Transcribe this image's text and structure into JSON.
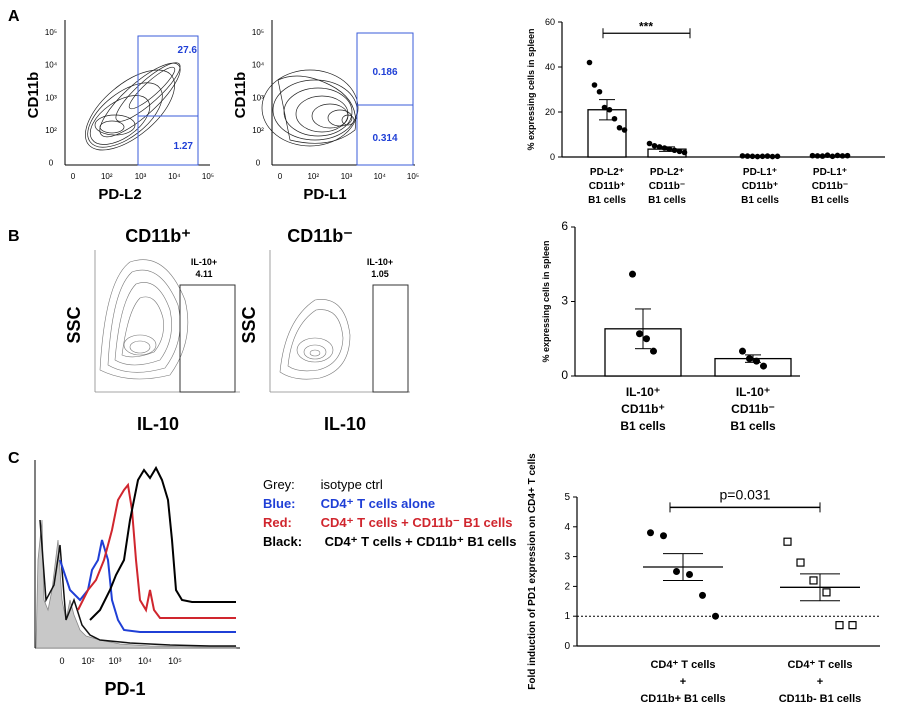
{
  "panels": {
    "A": {
      "letter": "A",
      "flow_left": {
        "ylabel": "CD11b",
        "xlabel": "PD-L2",
        "gate_upper": "27.6",
        "gate_lower": "1.27"
      },
      "flow_right": {
        "ylabel": "CD11b",
        "xlabel": "PD-L1",
        "gate_upper": "0.186",
        "gate_lower": "0.314"
      },
      "flow_yticks": [
        "10⁵",
        "10⁴",
        "10³",
        "10²",
        "0"
      ],
      "flow_xticks": [
        "0",
        "10²",
        "10³",
        "10⁴",
        "10⁵"
      ]
    },
    "B": {
      "letter": "B",
      "flow_left": {
        "title": "CD11b⁺",
        "ylabel": "SSC",
        "xlabel": "IL-10",
        "gate_name": "IL-10+",
        "gate_value": "4.11"
      },
      "flow_right": {
        "title": "CD11b⁻",
        "ylabel": "SSC",
        "xlabel": "IL-10",
        "gate_name": "IL-10+",
        "gate_value": "1.05"
      }
    },
    "C": {
      "letter": "C",
      "histogram": {
        "xlabel": "PD-1",
        "xticks": [
          "0",
          "10²",
          "10³",
          "10⁴",
          "10⁵"
        ]
      },
      "legend": [
        {
          "key": "Grey:",
          "text": "isotype ctrl",
          "color": "#222222"
        },
        {
          "key": "Blue:",
          "text": "CD4⁺ T cells alone",
          "color": "#1f3fd6"
        },
        {
          "key": "Red:",
          "text": "CD4⁺ T cells + CD11b⁻ B1 cells",
          "color": "#d0262e"
        },
        {
          "key": "Black:",
          "text": "CD4⁺ T cells + CD11b⁺ B1 cells",
          "color": "#000000"
        }
      ]
    }
  },
  "chart_data": [
    {
      "id": "A-bar",
      "type": "bar",
      "ylabel": "% expressing cells in spleen",
      "ylim": [
        0,
        60
      ],
      "yticks": [
        "0",
        "20",
        "40",
        "60"
      ],
      "significance": "***",
      "categories": [
        [
          "PD-L2⁺",
          "CD11b⁺",
          "B1 cells"
        ],
        [
          "PD-L2⁺",
          "CD11b⁻",
          "B1 cells"
        ],
        [
          "PD-L1⁺",
          "CD11b⁺",
          "B1 cells"
        ],
        [
          "PD-L1⁺",
          "CD11b⁻",
          "B1 cells"
        ]
      ],
      "values": [
        21,
        3.5,
        0.3,
        0.5
      ],
      "errors": [
        4.5,
        1.0,
        0.2,
        0.3
      ],
      "points": [
        [
          42,
          32,
          29,
          22,
          21,
          17,
          13,
          12
        ],
        [
          6,
          5,
          4.5,
          4,
          3.5,
          3,
          2.5,
          2
        ],
        [
          0.5,
          0.4,
          0.3,
          0.2,
          0.3,
          0.4,
          0.2,
          0.3
        ],
        [
          0.6,
          0.5,
          0.4,
          0.8,
          0.3,
          0.7,
          0.5,
          0.6
        ]
      ]
    },
    {
      "id": "B-bar",
      "type": "bar",
      "ylabel": "% expressing cells in spleen",
      "ylim": [
        0,
        6
      ],
      "yticks": [
        "0",
        "3",
        "6"
      ],
      "categories": [
        [
          "IL-10⁺",
          "CD11b⁺",
          "B1 cells"
        ],
        [
          "IL-10⁺",
          "CD11b⁻",
          "B1 cells"
        ]
      ],
      "values": [
        1.9,
        0.7
      ],
      "errors": [
        0.8,
        0.15
      ],
      "points": [
        [
          4.1,
          1.7,
          1.5,
          1.0
        ],
        [
          1.0,
          0.7,
          0.6,
          0.4
        ]
      ]
    },
    {
      "id": "C-scatter",
      "type": "scatter",
      "ylabel": "Fold induction of PD1 expression on CD4+ T cells",
      "ylim": [
        0,
        5
      ],
      "yticks": [
        "0",
        "1",
        "2",
        "3",
        "4",
        "5"
      ],
      "annotation": "p=0.031",
      "categories": [
        [
          "CD4⁺ T cells",
          "+",
          "CD11b+ B1 cells"
        ],
        [
          "CD4⁺ T cells",
          "+",
          "CD11b- B1 cells"
        ]
      ],
      "means": [
        2.65,
        1.97
      ],
      "errors": [
        0.45,
        0.45
      ],
      "baseline": 1,
      "points": [
        [
          3.8,
          3.7,
          2.5,
          2.4,
          1.7,
          1.0
        ],
        [
          3.5,
          2.8,
          2.2,
          1.8,
          0.7,
          0.7
        ]
      ]
    }
  ]
}
